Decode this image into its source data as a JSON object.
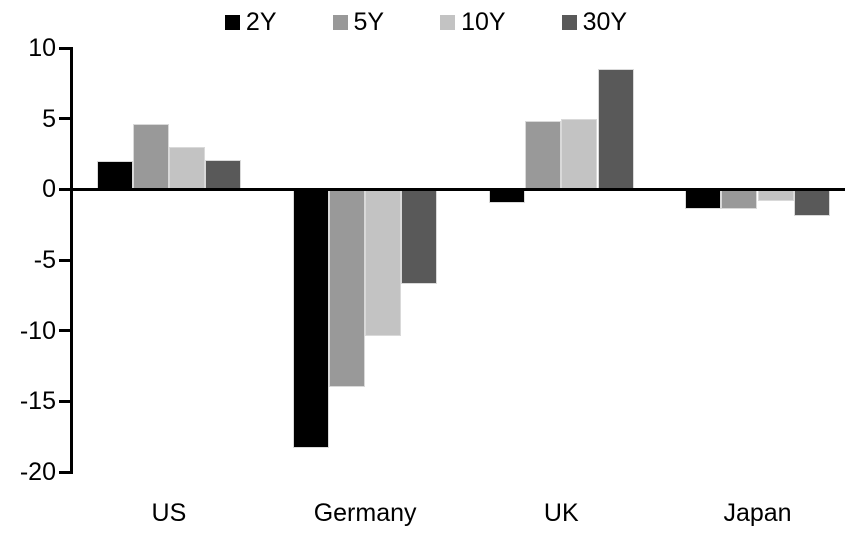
{
  "chart_data": {
    "type": "bar",
    "title": "",
    "categories": [
      "US",
      "Germany",
      "UK",
      "Japan"
    ],
    "series": [
      {
        "name": "2Y",
        "color": "#000000",
        "values": [
          2.0,
          -18.3,
          -1.0,
          -1.4
        ]
      },
      {
        "name": "5Y",
        "color": "#999999",
        "values": [
          4.6,
          -14.0,
          4.8,
          -1.4
        ]
      },
      {
        "name": "10Y",
        "color": "#c3c3c3",
        "values": [
          3.0,
          -10.4,
          5.0,
          -0.8
        ]
      },
      {
        "name": "30Y",
        "color": "#595959",
        "values": [
          2.1,
          -6.7,
          8.5,
          -1.9
        ]
      }
    ],
    "xlabel": "",
    "ylabel": "",
    "ylim": [
      -20,
      10
    ],
    "yticks": [
      10,
      5,
      0,
      -5,
      -10,
      -15,
      -20
    ],
    "legend_position": "top",
    "grid": false,
    "axis_color": "#000000",
    "background_color": "#ffffff"
  }
}
